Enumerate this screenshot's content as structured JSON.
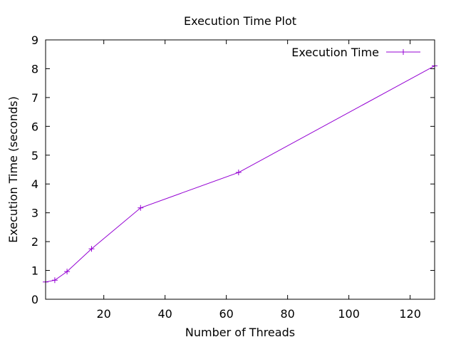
{
  "chart_data": {
    "type": "line",
    "title": "Execution Time Plot",
    "xlabel": "Number of Threads",
    "ylabel": "Execution Time (seconds)",
    "xlim": [
      1,
      128
    ],
    "ylim": [
      0,
      9
    ],
    "xticks": [
      20,
      40,
      60,
      80,
      100,
      120
    ],
    "yticks": [
      0,
      1,
      2,
      3,
      4,
      5,
      6,
      7,
      8,
      9
    ],
    "grid": false,
    "legend_position": "top-right",
    "series": [
      {
        "name": "Execution Time",
        "color": "#9400d3",
        "marker": "plus",
        "x": [
          1,
          4,
          8,
          16,
          32,
          64,
          128
        ],
        "y": [
          0.6,
          0.66,
          0.96,
          1.75,
          3.17,
          4.4,
          8.1
        ]
      }
    ]
  }
}
